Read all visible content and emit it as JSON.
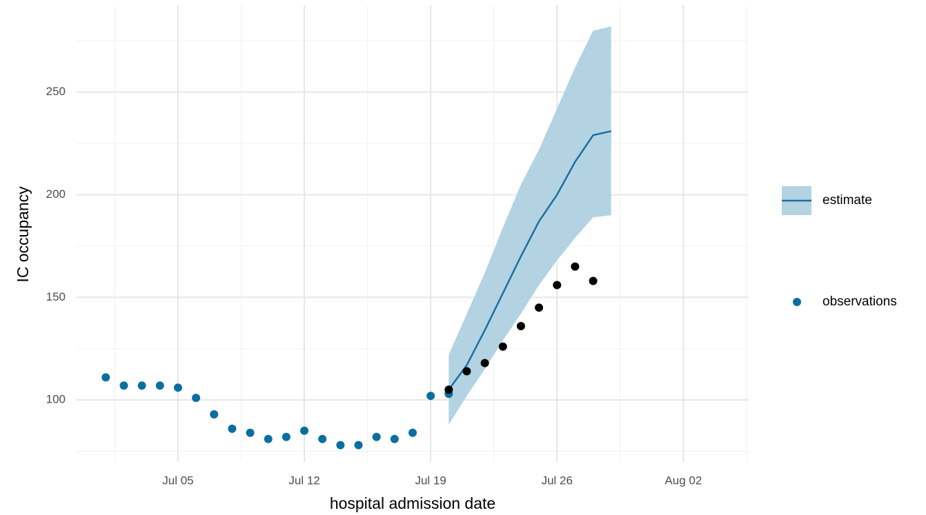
{
  "chart_data": {
    "type": "line",
    "x_label": "hospital admission date",
    "y_label": "IC occupancy",
    "xlim": [
      "Jun 29",
      "Aug 06"
    ],
    "xticks": [
      "Jul 05",
      "Jul 12",
      "Jul 19",
      "Jul 26",
      "Aug 02"
    ],
    "ylim": [
      67.8,
      292.2
    ],
    "yticks": [
      100,
      150,
      200,
      250
    ],
    "grid": true,
    "legend": "right",
    "series": [
      {
        "name": "estimate",
        "style": "ribbon-line",
        "color": "#1b6fa0",
        "fill": "#b3d3e3",
        "x": [
          "Jul 20",
          "Jul 21",
          "Jul 22",
          "Jul 23",
          "Jul 24",
          "Jul 25",
          "Jul 26",
          "Jul 27",
          "Jul 28",
          "Jul 29"
        ],
        "values": [
          105,
          117,
          134,
          152,
          170,
          187,
          200,
          216,
          229,
          231
        ],
        "lower": [
          88,
          102,
          115,
          129,
          142,
          156,
          168,
          179,
          189,
          190
        ],
        "upper": [
          122,
          142,
          162,
          184,
          205,
          222,
          242,
          262,
          280,
          282
        ]
      },
      {
        "name": "observations",
        "style": "points",
        "color": "#0a6ea0",
        "x": [
          "Jul 01",
          "Jul 02",
          "Jul 03",
          "Jul 04",
          "Jul 05",
          "Jul 06",
          "Jul 07",
          "Jul 08",
          "Jul 09",
          "Jul 10",
          "Jul 11",
          "Jul 12",
          "Jul 13",
          "Jul 14",
          "Jul 15",
          "Jul 16",
          "Jul 17",
          "Jul 18",
          "Jul 19",
          "Jul 20"
        ],
        "values": [
          111,
          107,
          107,
          107,
          106,
          101,
          93,
          86,
          84,
          81,
          82,
          85,
          81,
          78,
          78,
          82,
          81,
          84,
          102,
          103
        ]
      },
      {
        "style": "points",
        "color": "#000000",
        "x": [
          "Jul 20",
          "Jul 21",
          "Jul 22",
          "Jul 23",
          "Jul 24",
          "Jul 25",
          "Jul 26",
          "Jul 27",
          "Jul 28"
        ],
        "values": [
          105,
          114,
          118,
          126,
          136,
          145,
          156,
          165,
          158
        ]
      }
    ]
  }
}
